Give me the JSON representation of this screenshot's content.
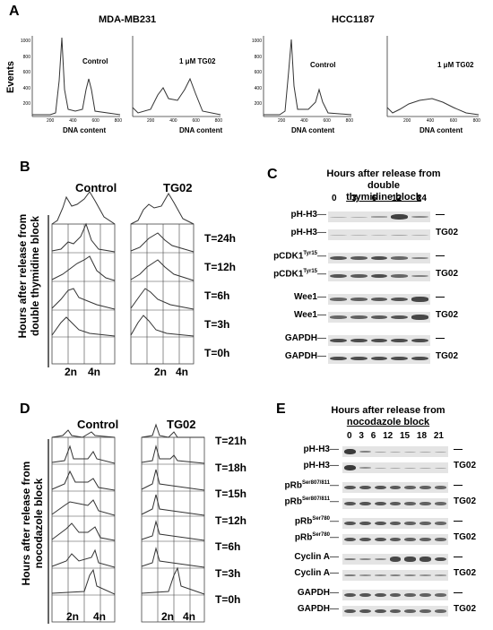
{
  "panelA": {
    "letter": "A",
    "cell_line_1": "MDA-MB231",
    "cell_line_2": "HCC1187",
    "ylabel": "Events",
    "xlabel": "DNA   content",
    "x_ticks": [
      "200",
      "400",
      "600",
      "800"
    ],
    "y_ticks": [
      "1000",
      "800",
      "600",
      "400",
      "200"
    ],
    "histograms": [
      {
        "label": "Control"
      },
      {
        "label": "1 μM TG02"
      },
      {
        "label": "Control"
      },
      {
        "label": "1 μM TG02"
      }
    ]
  },
  "panelB": {
    "letter": "B",
    "col_control": "Control",
    "col_treat": "TG02",
    "side_label_1": "Hours after release from",
    "side_label_2": "double thymidine block",
    "timepoints": [
      "T=24h",
      "T=12h",
      "T=6h",
      "T=3h",
      "T=0h"
    ],
    "x_2n": "2n",
    "x_4n": "4n"
  },
  "panelC": {
    "letter": "C",
    "header_1": "Hours after release from double",
    "header_2": "thymidine block",
    "hours": [
      "0",
      "3",
      "6",
      "12",
      "24"
    ],
    "rows": [
      {
        "label": "pH-H3",
        "sup": "",
        "cond": "—"
      },
      {
        "label": "pH-H3",
        "sup": "",
        "cond": "TG02"
      },
      {
        "label": "pCDK1",
        "sup": "Tyr15",
        "cond": "—"
      },
      {
        "label": "pCDK1",
        "sup": "Tyr15",
        "cond": "TG02"
      },
      {
        "label": "Wee1",
        "sup": "",
        "cond": "—"
      },
      {
        "label": "Wee1",
        "sup": "",
        "cond": "TG02"
      },
      {
        "label": "GAPDH",
        "sup": "",
        "cond": "—"
      },
      {
        "label": "GAPDH",
        "sup": "",
        "cond": "TG02"
      }
    ]
  },
  "panelD": {
    "letter": "D",
    "col_control": "Control",
    "col_treat": "TG02",
    "side_label_1": "Hours after release from",
    "side_label_2": "nocodazole block",
    "timepoints": [
      "T=21h",
      "T=18h",
      "T=15h",
      "T=12h",
      "T=6h",
      "T=3h",
      "T=0h"
    ],
    "x_2n": "2n",
    "x_4n": "4n"
  },
  "panelE": {
    "letter": "E",
    "header_1": "Hours after release from",
    "header_2": "nocodazole block",
    "hours": [
      "0",
      "3",
      "6",
      "12",
      "15",
      "18",
      "21"
    ],
    "rows": [
      {
        "label": "pH-H3",
        "sup": "",
        "cond": "—"
      },
      {
        "label": "pH-H3",
        "sup": "",
        "cond": "TG02"
      },
      {
        "label": "pRb",
        "sup": "Ser807/811",
        "cond": "—"
      },
      {
        "label": "pRb",
        "sup": "Ser807/811",
        "cond": "TG02"
      },
      {
        "label": "pRb",
        "sup": "Ser780",
        "cond": "—"
      },
      {
        "label": "pRb",
        "sup": "Ser780",
        "cond": "TG02"
      },
      {
        "label": "Cyclin A",
        "sup": "",
        "cond": "—"
      },
      {
        "label": "Cyclin A",
        "sup": "",
        "cond": "TG02"
      },
      {
        "label": "GAPDH",
        "sup": "",
        "cond": "—"
      },
      {
        "label": "GAPDH",
        "sup": "",
        "cond": "TG02"
      }
    ]
  }
}
